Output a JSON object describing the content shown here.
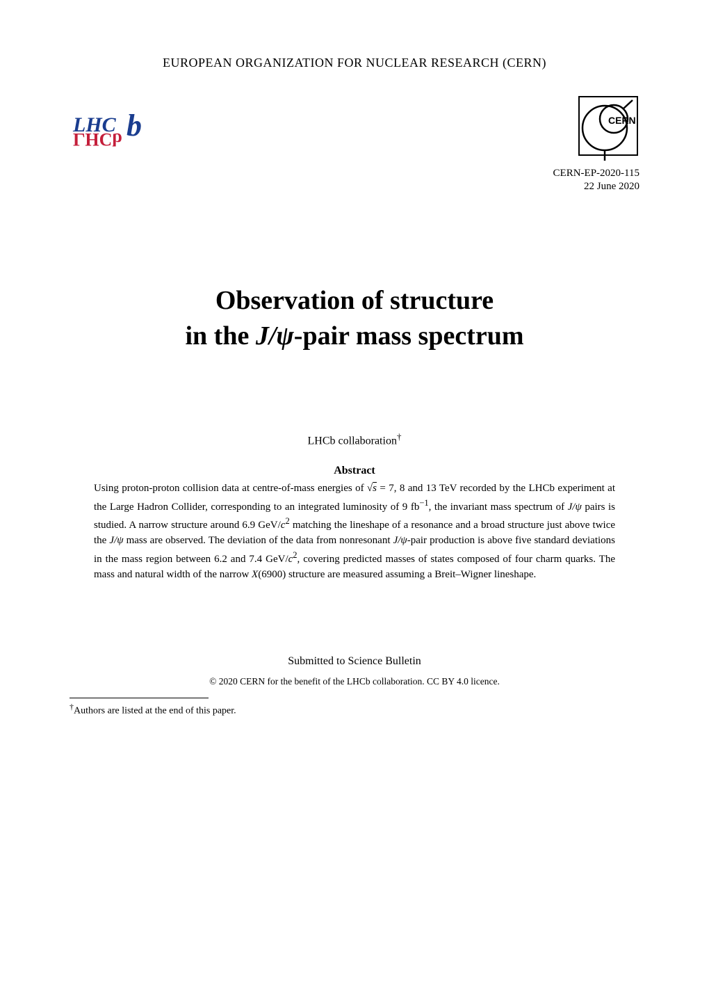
{
  "header": {
    "organization": "EUROPEAN ORGANIZATION FOR NUCLEAR RESEARCH (CERN)"
  },
  "report": {
    "number": "CERN-EP-2020-115",
    "date": "22 June 2020"
  },
  "title": {
    "line1": "Observation of structure",
    "line2_prefix": "in the ",
    "line2_math": "J/ψ",
    "line2_suffix": "-pair mass spectrum"
  },
  "collaboration": {
    "text": "LHCb collaboration",
    "marker": "†"
  },
  "abstract": {
    "heading": "Abstract",
    "body_html": "Using proton-proton collision data at centre-of-mass energies of √<span class=\"sqrt\">s</span> = 7, 8 and 13 TeV recorded by the LHCb experiment at the Large Hadron Collider, corresponding to an integrated luminosity of 9 fb<sup>−1</sup>, the invariant mass spectrum of <i>J/ψ</i> pairs is studied. A narrow structure around 6.9 GeV/<i>c</i><sup>2</sup> matching the lineshape of a resonance and a broad structure just above twice the <i>J/ψ</i> mass are observed. The deviation of the data from nonresonant <i>J/ψ</i>-pair production is above five standard deviations in the mass region between 6.2 and 7.4 GeV/<i>c</i><sup>2</sup>, covering predicted masses of states composed of four charm quarks. The mass and natural width of the narrow <i>X</i>(6900) structure are measured assuming a Breit–Wigner lineshape."
  },
  "submission": {
    "text": "Submitted to Science Bulletin"
  },
  "copyright": {
    "symbol": "©",
    "text": " 2020 CERN for the benefit of the LHCb collaboration. CC BY 4.0 licence."
  },
  "footnote": {
    "marker": "†",
    "text": "Authors are listed at the end of this paper."
  },
  "logos": {
    "lhcb": {
      "text_top": "LHCb",
      "text_bottom": "ГHCP",
      "color_blue": "#1a3d8f",
      "color_red": "#c41e3a"
    },
    "cern": {
      "label": "CERN",
      "stroke": "#000000"
    }
  },
  "styling": {
    "page_bg": "#ffffff",
    "text_color": "#000000",
    "org_fontsize": 18,
    "title_fontsize": 38,
    "body_fontsize": 15,
    "collab_fontsize": 16,
    "footnote_fontsize": 14
  }
}
